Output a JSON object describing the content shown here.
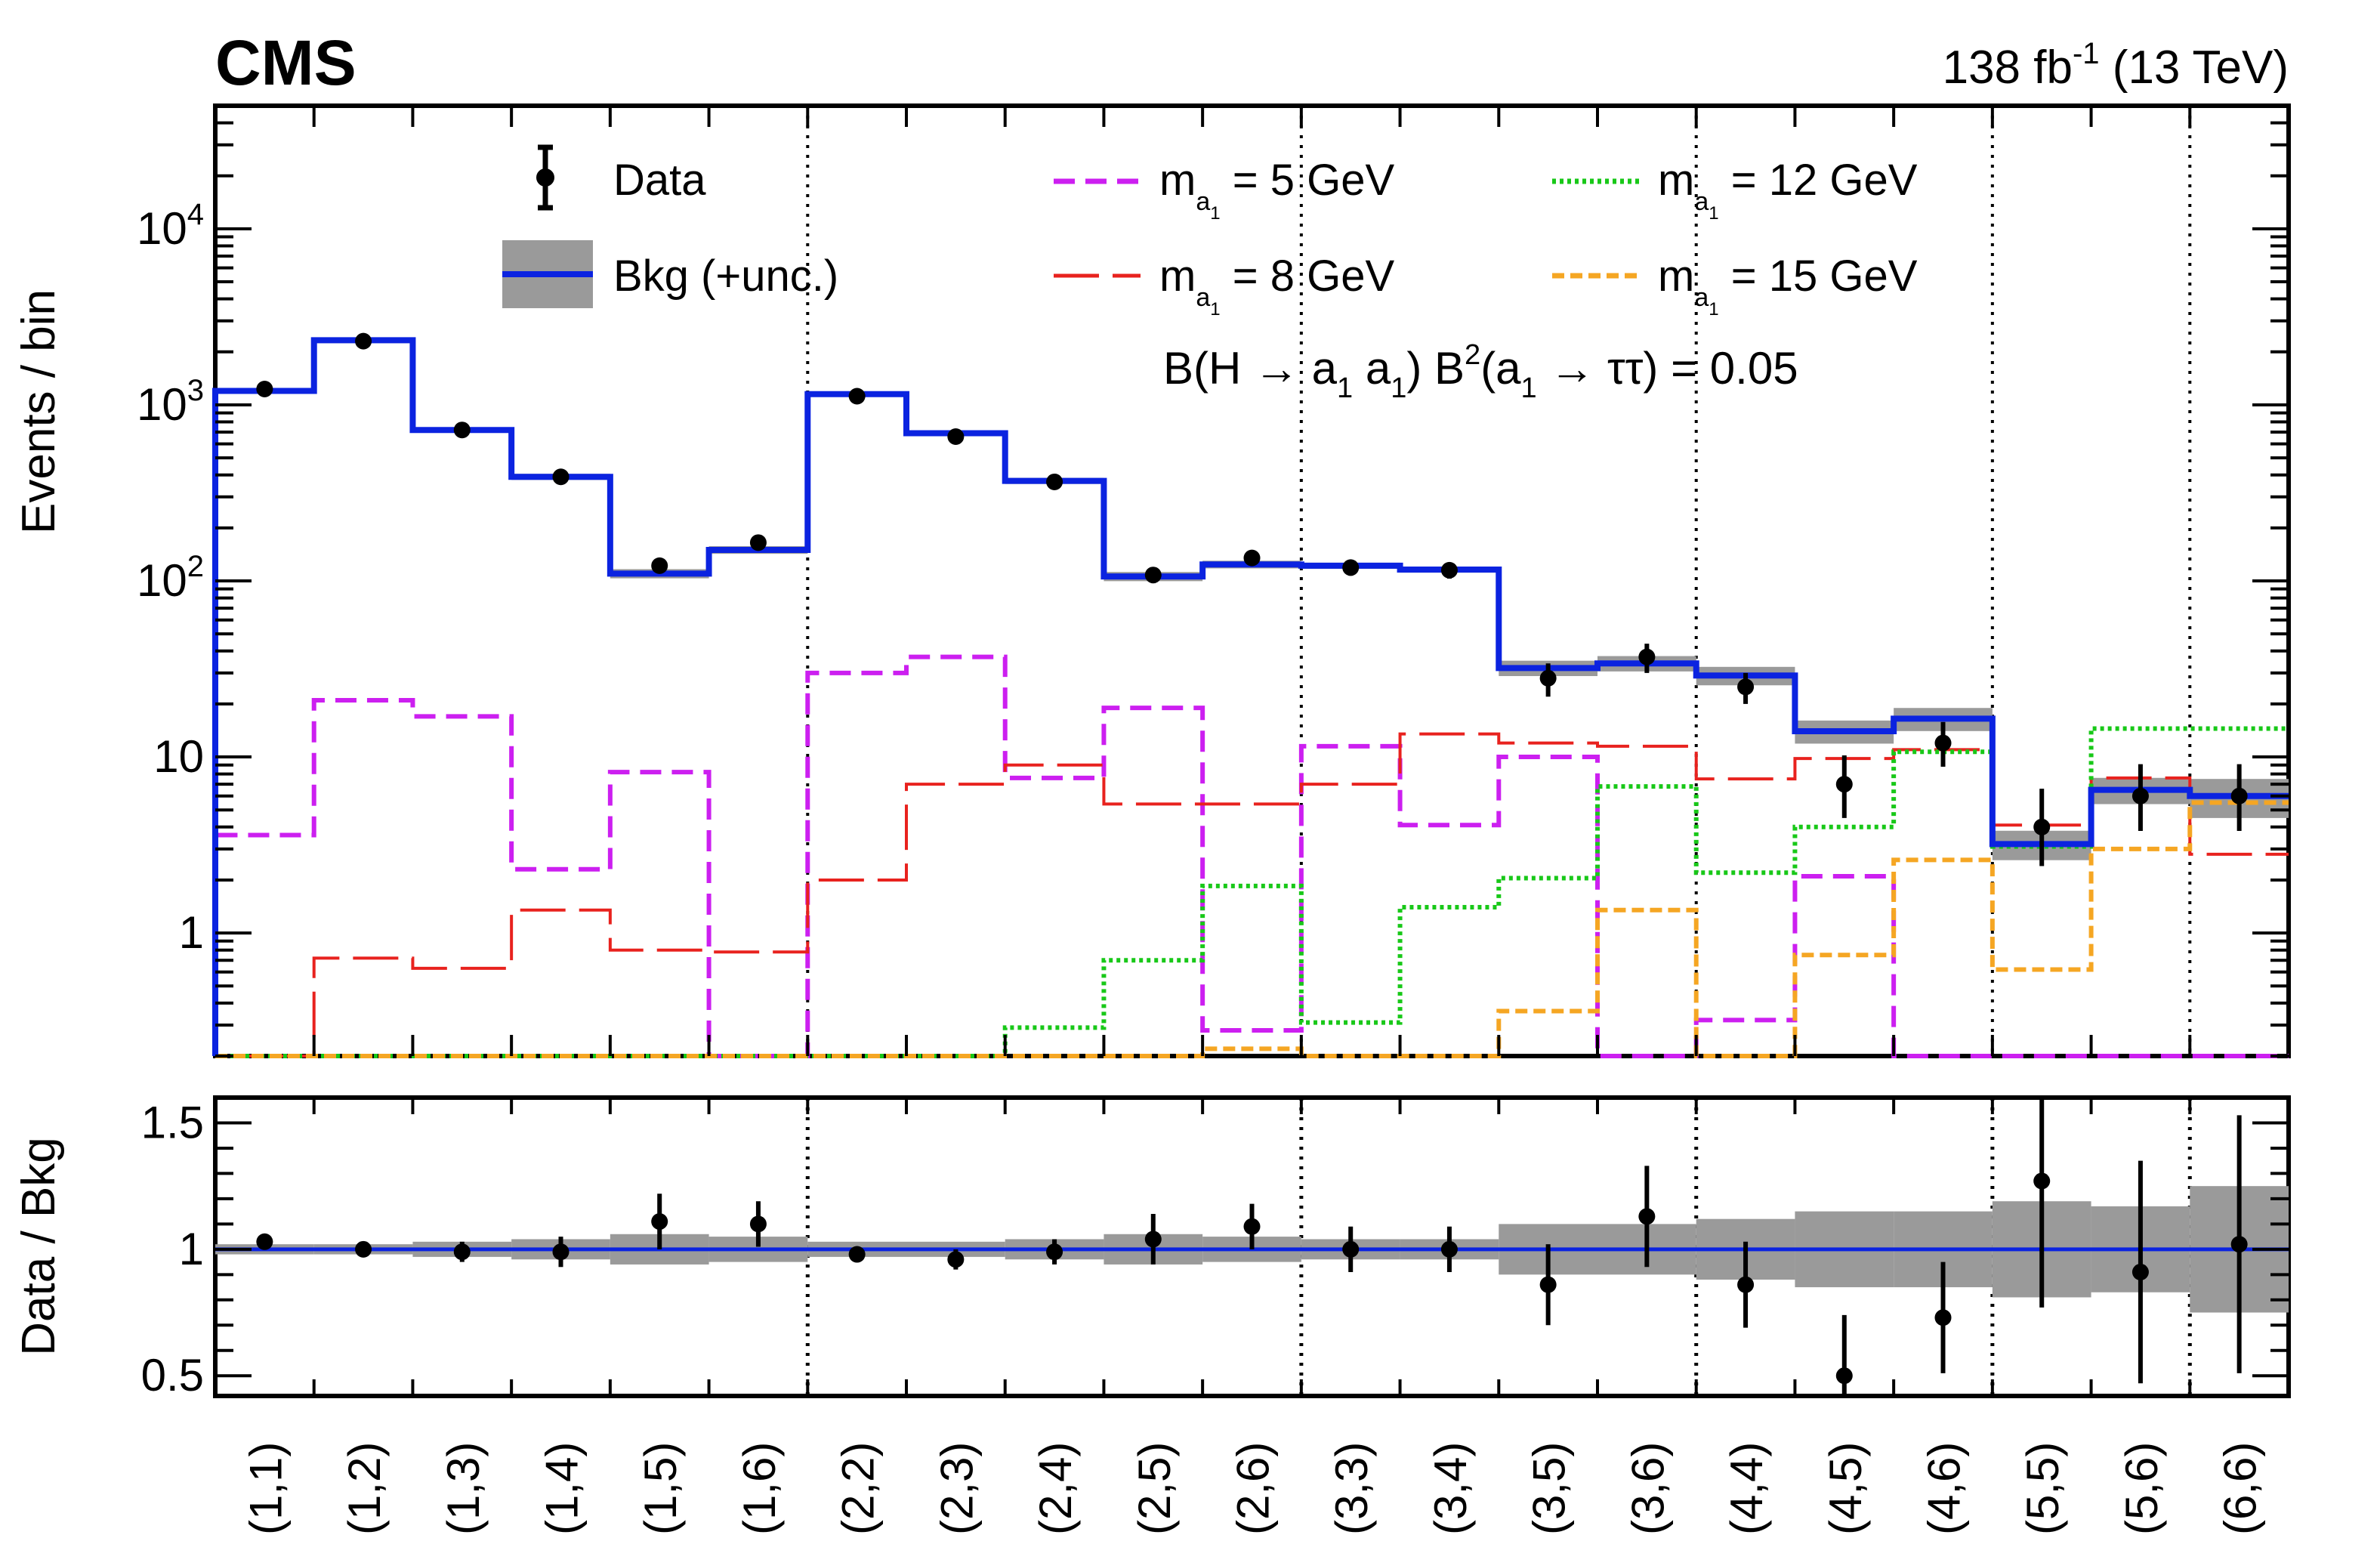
{
  "header": {
    "experiment": "CMS",
    "luminosity": "138 fb",
    "lumi_exponent": "-1",
    "energy": "(13 TeV)"
  },
  "legend": {
    "data_label": "Data",
    "bkg_label": "Bkg (+unc.)",
    "m5_label": "m",
    "m8_label": "m",
    "m12_label": "m",
    "m15_label": "m",
    "mass_sub": "a",
    "mass_subsub": "1",
    "m5_value": " = 5 GeV",
    "m8_value": " = 8 GeV",
    "m12_value": " = 12 GeV",
    "m15_value": " = 15 GeV"
  },
  "annotation": {
    "part1": "B(H → a",
    "sub1": "1",
    "part2": " a",
    "sub2": "1",
    "part3": ") B",
    "sup": "2",
    "part4": "(a",
    "sub3": "1",
    "part5": " → ττ) = 0.05"
  },
  "chart_data": [
    {
      "type": "histogram",
      "panel": "main",
      "ylabel": "Events / bin",
      "yscale": "log",
      "ylim": [
        0.2,
        50000
      ],
      "ytick_labels": [
        "1",
        "10",
        "10",
        "10",
        "10"
      ],
      "ytick_exponents": [
        "",
        "",
        "2",
        "3",
        "4"
      ],
      "categories": [
        "(1,1)",
        "(1,2)",
        "(1,3)",
        "(1,4)",
        "(1,5)",
        "(1,6)",
        "(2,2)",
        "(2,3)",
        "(2,4)",
        "(2,5)",
        "(2,6)",
        "(3,3)",
        "(3,4)",
        "(3,5)",
        "(3,6)",
        "(4,4)",
        "(4,5)",
        "(4,6)",
        "(5,5)",
        "(5,6)",
        "(6,6)"
      ],
      "group_boundaries_after_bin": [
        6,
        11,
        15,
        18,
        20
      ],
      "series": [
        {
          "name": "Data",
          "kind": "points",
          "color": "#000000",
          "values": [
            1230,
            2300,
            720,
            390,
            122,
            165,
            1120,
            660,
            365,
            108,
            135,
            119,
            115,
            28,
            37,
            25,
            7,
            12,
            4,
            6,
            6
          ],
          "err_low": [
            50,
            60,
            30,
            25,
            12,
            15,
            40,
            30,
            22,
            11,
            12,
            12,
            12,
            6,
            7,
            5,
            2.5,
            3.2,
            1.6,
            2.2,
            2.2
          ],
          "err_high": [
            50,
            60,
            30,
            25,
            12,
            15,
            40,
            30,
            22,
            11,
            12,
            12,
            12,
            6,
            7,
            5,
            3.2,
            3.8,
            2.6,
            3.1,
            3.1
          ]
        },
        {
          "name": "Bkg (+unc.)",
          "kind": "step",
          "color": "#0b23e0",
          "band_color": "#9a9a9a",
          "values": [
            1200,
            2330,
            720,
            390,
            110,
            150,
            1150,
            690,
            370,
            106,
            124,
            122,
            116,
            32,
            34,
            29,
            14,
            16.5,
            3.2,
            6.5,
            6.0
          ],
          "unc_rel": [
            0.02,
            0.02,
            0.03,
            0.04,
            0.06,
            0.05,
            0.03,
            0.03,
            0.04,
            0.06,
            0.05,
            0.04,
            0.04,
            0.1,
            0.1,
            0.12,
            0.15,
            0.15,
            0.19,
            0.17,
            0.25
          ]
        },
        {
          "name": "m_a1 = 5 GeV",
          "kind": "step",
          "color": "#cc1ff0",
          "dash": "28 14",
          "values": [
            3.6,
            21,
            17,
            2.3,
            8.2,
            0.2,
            30,
            37,
            7.6,
            19,
            0.28,
            11.5,
            4.1,
            10,
            0.2,
            0.32,
            2.1,
            0.2,
            0.2,
            0.2,
            0.2
          ]
        },
        {
          "name": "m_a1 = 8 GeV",
          "kind": "step",
          "color": "#e8221e",
          "dash": "60 18",
          "values": [
            0.2,
            0.72,
            0.63,
            1.35,
            0.8,
            0.78,
            2.0,
            7.0,
            9.0,
            5.4,
            5.4,
            7.0,
            13.5,
            12.0,
            11.5,
            7.5,
            9.8,
            11.0,
            4.1,
            7.6,
            2.8
          ]
        },
        {
          "name": "m_a1 = 12 GeV",
          "kind": "step",
          "color": "#18c818",
          "dash": "5 5",
          "values": [
            0.2,
            0.2,
            0.2,
            0.2,
            0.2,
            0.2,
            0.2,
            0.2,
            0.29,
            0.7,
            1.85,
            0.31,
            1.4,
            2.05,
            6.8,
            2.2,
            4.0,
            10.7,
            3.1,
            14.5,
            14.5
          ]
        },
        {
          "name": "m_a1 = 15 GeV",
          "kind": "step",
          "color": "#f5a623",
          "dash": "16 8",
          "values": [
            0.2,
            0.2,
            0.2,
            0.2,
            0.2,
            0.2,
            0.2,
            0.2,
            0.2,
            0.2,
            0.22,
            0.2,
            0.2,
            0.36,
            1.35,
            0.2,
            0.75,
            2.6,
            0.62,
            3.0,
            5.5
          ]
        }
      ]
    },
    {
      "type": "ratio",
      "panel": "ratio",
      "ylabel": "Data / Bkg",
      "ylim": [
        0.42,
        1.6
      ],
      "ytick_labels": [
        "0.5",
        "1",
        "1.5"
      ],
      "categories": [
        "(1,1)",
        "(1,2)",
        "(1,3)",
        "(1,4)",
        "(1,5)",
        "(1,6)",
        "(2,2)",
        "(2,3)",
        "(2,4)",
        "(2,5)",
        "(2,6)",
        "(3,3)",
        "(3,4)",
        "(3,5)",
        "(3,6)",
        "(4,4)",
        "(4,5)",
        "(4,6)",
        "(5,5)",
        "(5,6)",
        "(6,6)"
      ],
      "ratio": [
        1.03,
        1.0,
        0.99,
        0.99,
        1.11,
        1.1,
        0.98,
        0.96,
        0.99,
        1.04,
        1.09,
        1.0,
        1.0,
        0.86,
        1.13,
        0.86,
        0.5,
        0.73,
        1.27,
        0.91,
        1.02
      ],
      "err": [
        0.03,
        0.02,
        0.04,
        0.06,
        0.11,
        0.09,
        0.03,
        0.04,
        0.05,
        0.1,
        0.09,
        0.09,
        0.09,
        0.16,
        0.2,
        0.17,
        0.24,
        0.22,
        0.5,
        0.44,
        0.51
      ],
      "band_rel": [
        0.02,
        0.02,
        0.03,
        0.04,
        0.06,
        0.05,
        0.03,
        0.03,
        0.04,
        0.06,
        0.05,
        0.04,
        0.04,
        0.1,
        0.1,
        0.12,
        0.15,
        0.15,
        0.19,
        0.17,
        0.25
      ]
    }
  ]
}
